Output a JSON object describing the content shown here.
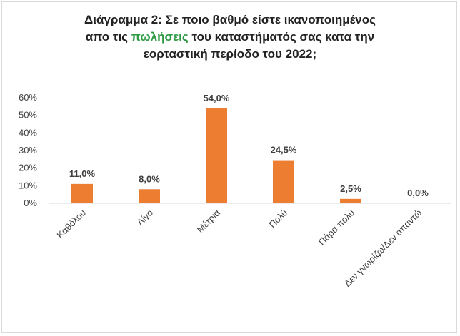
{
  "chart_data": {
    "type": "bar",
    "title_parts": [
      "Διάγραμμα 2: Σε ποιο βαθμό είστε ικανοποιημένος",
      "απο τις ",
      "πωλήσεις",
      " του καταστήματός σας κατα την",
      "εορταστική περίοδο του 2022;"
    ],
    "categories": [
      "Καθόλου",
      "Λίγο",
      "Μέτρια",
      "Πολύ",
      "Πάρα πολύ",
      "Δεν γνωρίζω/Δεν απαντώ"
    ],
    "values": [
      11.0,
      8.0,
      54.0,
      24.5,
      2.5,
      0.0
    ],
    "data_labels": [
      "11,0%",
      "8,0%",
      "54,0%",
      "24,5%",
      "2,5%",
      "0,0%"
    ],
    "y_ticks": [
      "0%",
      "10%",
      "20%",
      "30%",
      "40%",
      "50%",
      "60%"
    ],
    "ylim": [
      0,
      60
    ],
    "grid": false,
    "legend": "none",
    "bar_color": "#ed7d31",
    "highlight_color": "#2e9a44"
  }
}
